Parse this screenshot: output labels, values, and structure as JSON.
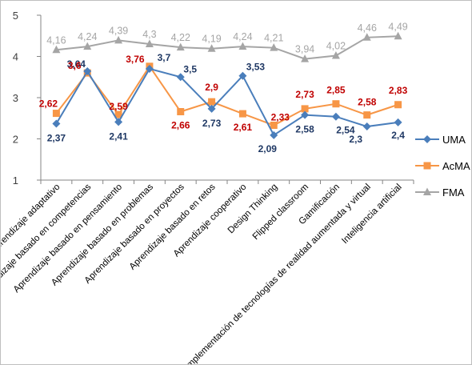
{
  "chart_data": {
    "type": "line",
    "title": "",
    "xlabel": "",
    "ylabel": "",
    "ylim": [
      1,
      5
    ],
    "yticks": [
      1,
      2,
      3,
      4,
      5
    ],
    "grid": false,
    "legend_position": "right",
    "categories": [
      "Aprendizaje adaptativo",
      "Aprendizaje basado en competencias",
      "Aprendizaje basado en pensamiento",
      "Aprendizaje basado en problemas",
      "Aprendizaje basado en proyectos",
      "Aprendizaje basado en retos",
      "Aprendizaje cooperativo",
      "Design Thinking",
      "Flipped classroom",
      "Gamificación",
      "Implementación de tecnologías de realidad aumentada y virtual",
      "Inteligencia artificial"
    ],
    "series": [
      {
        "name": "UMA",
        "color": "#4a7ebb",
        "label_color": "#1f3864",
        "marker": "diamond",
        "values": [
          2.37,
          3.64,
          2.41,
          3.7,
          3.5,
          2.73,
          3.53,
          2.09,
          2.58,
          2.54,
          2.3,
          2.4
        ],
        "labels": [
          "2,37",
          "3,64",
          "2,41",
          "3,7",
          "3,5",
          "2,73",
          "3,53",
          "2,09",
          "2,58",
          "2,54",
          "2,3",
          "2,4"
        ]
      },
      {
        "name": "AcMA",
        "color": "#f79646",
        "label_color": "#c00000",
        "marker": "square",
        "values": [
          2.62,
          3.6,
          2.59,
          3.76,
          2.66,
          2.9,
          2.61,
          2.33,
          2.73,
          2.85,
          2.58,
          2.83
        ],
        "labels": [
          "2,62",
          "3,6",
          "2,59",
          "3,76",
          "2,66",
          "2,9",
          "2,61",
          "2,33",
          "2,73",
          "2,85",
          "2,58",
          "2,83"
        ]
      },
      {
        "name": "FMA",
        "color": "#a5a5a5",
        "label_color": "#a5a5a5",
        "marker": "triangle",
        "values": [
          4.16,
          4.24,
          4.39,
          4.3,
          4.22,
          4.19,
          4.24,
          4.21,
          3.94,
          4.02,
          4.46,
          4.49
        ],
        "labels": [
          "4,16",
          "4,24",
          "4,39",
          "4,3",
          "4,22",
          "4,19",
          "4,24",
          "4,21",
          "3,94",
          "4,02",
          "4,46",
          "4,49"
        ]
      }
    ]
  }
}
